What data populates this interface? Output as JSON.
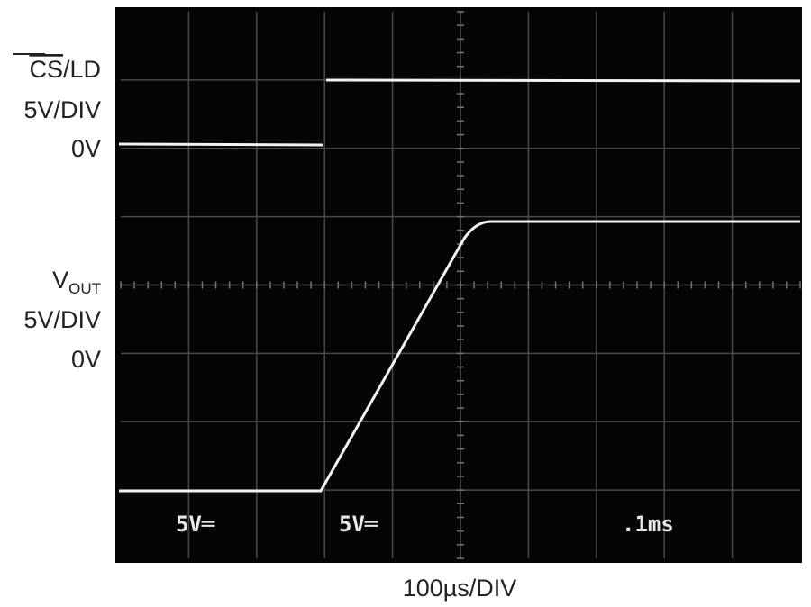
{
  "scope": {
    "channel1": {
      "name_overlined": "CS",
      "name_rest": "/LD",
      "scale": "5V/DIV",
      "ground": "0V"
    },
    "channel2": {
      "name_main": "V",
      "name_sub": "OUT",
      "scale": "5V/DIV",
      "ground": "0V"
    },
    "timebase": "100µs/DIV",
    "screen_readout": [
      "5V═",
      "5V═",
      ".1ms"
    ]
  }
}
